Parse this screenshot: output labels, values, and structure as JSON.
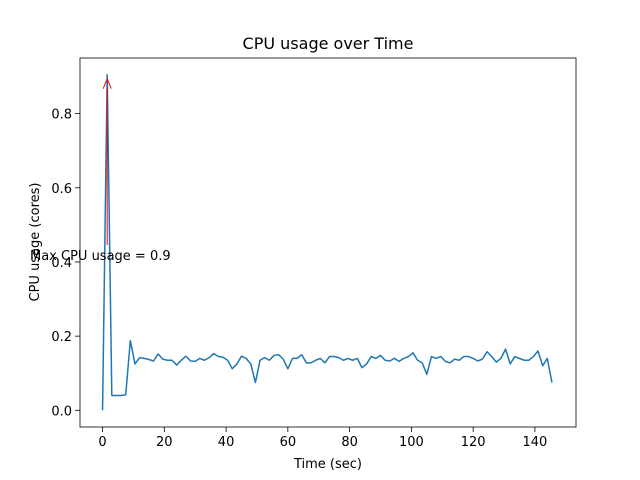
{
  "chart_data": {
    "type": "line",
    "title": "CPU usage over Time",
    "xlabel": "Time (sec)",
    "ylabel": "CPU usage (cores)",
    "annotation": {
      "text": "Max CPU usage = 0.9",
      "color": "#ff0000"
    },
    "x": [
      0,
      1.5,
      3,
      4.5,
      6,
      7.5,
      9,
      10.5,
      12,
      13.5,
      15,
      16.5,
      18,
      19.5,
      21,
      22.5,
      24,
      25.5,
      27,
      28.5,
      30,
      31.5,
      33,
      34.5,
      36,
      37.5,
      39,
      40.5,
      42,
      43.5,
      45,
      46.5,
      48,
      49.5,
      51,
      52.5,
      54,
      55.5,
      57,
      58.5,
      60,
      61.5,
      63,
      64.5,
      66,
      67.5,
      69,
      70.5,
      72,
      73.5,
      75,
      76.5,
      78,
      79.5,
      81,
      82.5,
      84,
      85.5,
      87,
      88.5,
      90,
      91.5,
      93,
      94.5,
      96,
      97.5,
      99,
      100.5,
      102,
      103.5,
      105,
      106.5,
      108,
      109.5,
      111,
      112.5,
      114,
      115.5,
      117,
      118.5,
      120,
      121.5,
      123,
      124.5,
      126,
      127.5,
      129,
      130.5,
      132,
      133.5,
      135,
      136.5,
      138,
      139.5,
      141,
      142.5,
      144,
      145.5
    ],
    "series": [
      {
        "color": "#1f77b4",
        "values": [
          0.0,
          0.905,
          0.04,
          0.04,
          0.04,
          0.042,
          0.188,
          0.125,
          0.142,
          0.14,
          0.137,
          0.133,
          0.152,
          0.138,
          0.135,
          0.135,
          0.122,
          0.135,
          0.146,
          0.133,
          0.132,
          0.14,
          0.135,
          0.142,
          0.153,
          0.145,
          0.143,
          0.135,
          0.112,
          0.125,
          0.146,
          0.14,
          0.125,
          0.075,
          0.135,
          0.142,
          0.135,
          0.148,
          0.15,
          0.138,
          0.112,
          0.14,
          0.14,
          0.15,
          0.128,
          0.128,
          0.135,
          0.14,
          0.128,
          0.145,
          0.145,
          0.142,
          0.135,
          0.14,
          0.135,
          0.14,
          0.115,
          0.125,
          0.145,
          0.14,
          0.148,
          0.135,
          0.133,
          0.14,
          0.132,
          0.14,
          0.145,
          0.155,
          0.135,
          0.128,
          0.097,
          0.145,
          0.14,
          0.145,
          0.132,
          0.128,
          0.138,
          0.135,
          0.145,
          0.145,
          0.14,
          0.133,
          0.138,
          0.158,
          0.145,
          0.13,
          0.14,
          0.165,
          0.125,
          0.145,
          0.14,
          0.135,
          0.135,
          0.145,
          0.16,
          0.12,
          0.14,
          0.075
        ]
      }
    ],
    "xlim": [
      -7.3,
      153.3
    ],
    "xticks": [
      0,
      20,
      40,
      60,
      80,
      100,
      120,
      140
    ],
    "ylim": [
      -0.045,
      0.95
    ],
    "yticks": [
      {
        "value": 0,
        "label": "0.0"
      },
      0.2,
      0.4,
      0.6,
      0.8
    ]
  }
}
